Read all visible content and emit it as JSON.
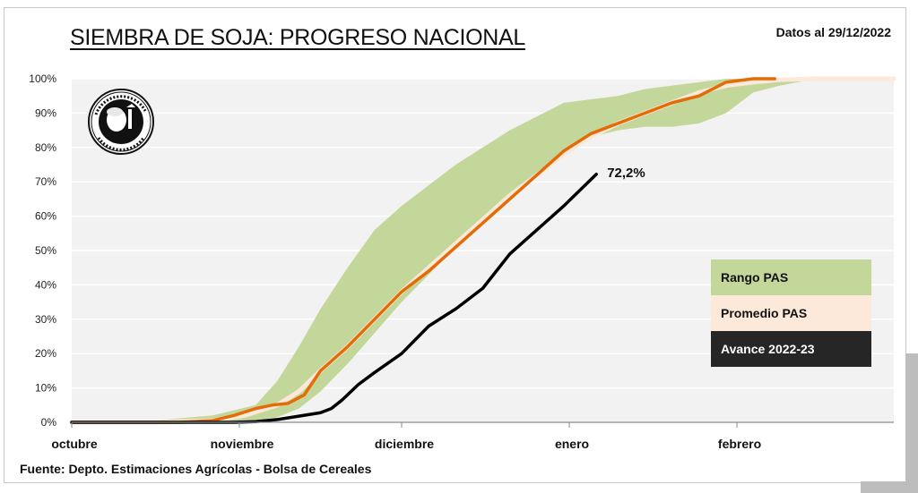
{
  "header": {
    "title": "SIEMBRA DE SOJA: PROGRESO NACIONAL",
    "date_label": "Datos al 29/12/2022"
  },
  "footer": {
    "source": "Fuente: Depto. Estimaciones Agrícolas - Bolsa de Cereales"
  },
  "logo": {
    "icon": "bolsa-de-cereales-seal-icon",
    "text": "Constantia et Labore · Buenos Aires · 1854"
  },
  "legend": {
    "items": [
      {
        "label": "Rango PAS",
        "color": "#c4d79b"
      },
      {
        "label": "Promedio PAS",
        "color": "#fde9d9"
      },
      {
        "label": "Avance 2022-23",
        "color": "#262626"
      }
    ]
  },
  "chart_data": {
    "type": "line",
    "title": "SIEMBRA DE SOJA: PROGRESO NACIONAL",
    "xlabel": "",
    "ylabel": "",
    "x_unit": "days since Oct 1",
    "xlim": [
      0,
      152
    ],
    "ylim": [
      0,
      100
    ],
    "grid": true,
    "y_ticks": [
      "0%",
      "10%",
      "20%",
      "30%",
      "40%",
      "50%",
      "60%",
      "70%",
      "80%",
      "90%",
      "100%"
    ],
    "x_ticks": [
      {
        "label": "octubre",
        "day": 0
      },
      {
        "label": "noviembre",
        "day": 31
      },
      {
        "label": "diciembre",
        "day": 61
      },
      {
        "label": "enero",
        "day": 92
      },
      {
        "label": "febrero",
        "day": 123
      }
    ],
    "legend_position": "right",
    "annotation": {
      "text": "72,2%",
      "day": 97,
      "value": 72.2
    },
    "series": [
      {
        "name": "Rango PAS",
        "kind": "band",
        "color": "#c4d79b",
        "x": [
          0,
          15,
          26,
          34,
          38,
          42,
          46,
          51,
          56,
          61,
          66,
          71,
          76,
          81,
          86,
          91,
          96,
          101,
          106,
          111,
          116,
          121,
          126,
          131,
          136,
          145,
          152
        ],
        "low": [
          0,
          0,
          0,
          0.5,
          1.5,
          4,
          9,
          17,
          26,
          35,
          43,
          51,
          58,
          65,
          72,
          79,
          83,
          85,
          86,
          86,
          87,
          90,
          96,
          98,
          99.5,
          100,
          100
        ],
        "high": [
          0,
          0.5,
          2,
          5,
          12,
          22,
          33,
          45,
          56,
          63,
          69,
          75,
          80,
          85,
          89,
          93,
          94,
          95,
          97,
          98,
          99,
          100,
          100,
          100,
          100,
          100,
          100
        ]
      },
      {
        "name": "Promedio PAS",
        "kind": "line",
        "color": "#fde9d9",
        "x": [
          0,
          15,
          26,
          32,
          38,
          42,
          46,
          51,
          56,
          61,
          66,
          71,
          76,
          81,
          86,
          91,
          96,
          101,
          106,
          111,
          116,
          121,
          126,
          131,
          138,
          145,
          152
        ],
        "y": [
          0,
          0,
          0.5,
          2,
          5,
          9,
          15,
          22,
          30,
          38,
          45,
          52,
          59,
          66,
          72,
          78,
          83,
          87,
          90,
          93,
          96,
          98,
          99,
          99.7,
          100,
          100,
          100
        ]
      },
      {
        "name": "Promedio PAS (línea)",
        "kind": "line",
        "color": "#e36c09",
        "x": [
          0,
          20,
          26,
          30,
          34,
          37,
          40,
          43,
          46,
          51,
          56,
          61,
          66,
          71,
          76,
          81,
          86,
          91,
          96,
          101,
          106,
          111,
          116,
          121,
          126,
          130
        ],
        "y": [
          0,
          0,
          0.5,
          2,
          4,
          5,
          5.5,
          8,
          15,
          22,
          30,
          38,
          44,
          51,
          58,
          65,
          72,
          79,
          84,
          87,
          90,
          93,
          95,
          99,
          100,
          100
        ]
      },
      {
        "name": "Avance 2022-23",
        "kind": "line",
        "color": "#000000",
        "x": [
          0,
          30,
          34,
          38,
          42,
          46,
          48,
          50,
          53,
          56,
          61,
          66,
          71,
          76,
          81,
          86,
          91,
          97
        ],
        "y": [
          0,
          0,
          0.2,
          0.8,
          1.8,
          2.8,
          4,
          6.5,
          11,
          14.5,
          20,
          28,
          33,
          39,
          49,
          56,
          63,
          72.2
        ]
      }
    ]
  }
}
